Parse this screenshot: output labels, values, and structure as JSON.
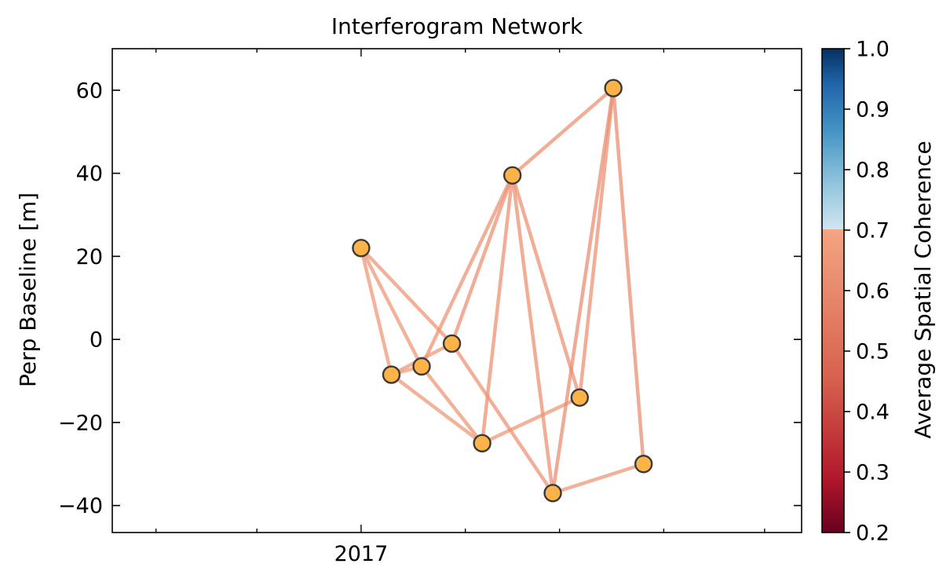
{
  "chart_data": {
    "type": "scatter",
    "title": "Interferogram Network",
    "xlabel": "",
    "ylabel": "Perp Baseline [m]",
    "x_ticks": [
      "2017"
    ],
    "y_ticks": [
      -40,
      -20,
      0,
      20,
      40,
      60
    ],
    "ylim": [
      -46.5,
      70
    ],
    "xlim": [
      "2016-10-19",
      "2017-05-12"
    ],
    "grid": false,
    "nodes": [
      {
        "date": "2017-01-01",
        "y": 22
      },
      {
        "date": "2017-01-10",
        "y": -8.5
      },
      {
        "date": "2017-01-19",
        "y": -6.5
      },
      {
        "date": "2017-01-28",
        "y": -1
      },
      {
        "date": "2017-02-06",
        "y": -25
      },
      {
        "date": "2017-02-15",
        "y": 39.5
      },
      {
        "date": "2017-02-27",
        "y": -37
      },
      {
        "date": "2017-03-07",
        "y": -14
      },
      {
        "date": "2017-03-17",
        "y": 60.5
      },
      {
        "date": "2017-03-26",
        "y": -30
      }
    ],
    "edges": [
      {
        "from": 0,
        "to": 1,
        "coherence": 0.66
      },
      {
        "from": 0,
        "to": 2,
        "coherence": 0.66
      },
      {
        "from": 0,
        "to": 3,
        "coherence": 0.65
      },
      {
        "from": 1,
        "to": 2,
        "coherence": 0.67
      },
      {
        "from": 1,
        "to": 3,
        "coherence": 0.66
      },
      {
        "from": 1,
        "to": 4,
        "coherence": 0.66
      },
      {
        "from": 2,
        "to": 4,
        "coherence": 0.65
      },
      {
        "from": 2,
        "to": 5,
        "coherence": 0.64
      },
      {
        "from": 3,
        "to": 5,
        "coherence": 0.63
      },
      {
        "from": 3,
        "to": 6,
        "coherence": 0.64
      },
      {
        "from": 4,
        "to": 5,
        "coherence": 0.63
      },
      {
        "from": 4,
        "to": 7,
        "coherence": 0.65
      },
      {
        "from": 5,
        "to": 6,
        "coherence": 0.63
      },
      {
        "from": 5,
        "to": 7,
        "coherence": 0.63
      },
      {
        "from": 5,
        "to": 8,
        "coherence": 0.63
      },
      {
        "from": 6,
        "to": 8,
        "coherence": 0.62
      },
      {
        "from": 6,
        "to": 9,
        "coherence": 0.65
      },
      {
        "from": 7,
        "to": 8,
        "coherence": 0.63
      },
      {
        "from": 8,
        "to": 9,
        "coherence": 0.62
      }
    ],
    "colorbar": {
      "label": "Average Spatial Coherence",
      "range": [
        0.2,
        1.0
      ],
      "ticks": [
        "0.2",
        "0.3",
        "0.4",
        "0.5",
        "0.6",
        "0.7",
        "0.8",
        "0.9",
        "1.0"
      ],
      "split_value": 0.7
    },
    "colors": {
      "node_fill": "#fdb347",
      "node_edge": "#3a3a3a"
    }
  }
}
